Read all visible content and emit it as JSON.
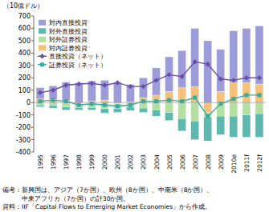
{
  "chart_data": {
    "type": "bar",
    "stacked": true,
    "y_label": "（10億ドル）",
    "categories": [
      "1995",
      "1996",
      "1997",
      "1998",
      "1999",
      "2000",
      "2001",
      "2002",
      "2003",
      "2004",
      "2005",
      "2006",
      "2007",
      "2008",
      "2009",
      "2010e",
      "2011f",
      "2012f"
    ],
    "ylim": [
      -400,
      700
    ],
    "yticks": [
      -400,
      -300,
      -200,
      -100,
      0,
      100,
      200,
      300,
      400,
      500,
      600,
      700
    ],
    "grid": false,
    "legend": "top-left",
    "series": [
      {
        "name": "対内直接投資",
        "type": "bar",
        "color": "#9c9cd8",
        "values": [
          90,
          110,
          150,
          160,
          165,
          160,
          165,
          140,
          160,
          220,
          280,
          300,
          470,
          500,
          340,
          420,
          440,
          470
        ]
      },
      {
        "name": "対外直接投資",
        "type": "bar",
        "color": "#5fb8b0",
        "values": [
          -15,
          -20,
          -25,
          -20,
          -20,
          -35,
          -30,
          -30,
          -35,
          -50,
          -65,
          -100,
          -150,
          -190,
          -150,
          -170,
          -180,
          -190
        ]
      },
      {
        "name": "対外証券投資",
        "type": "bar",
        "color": "#b5dfa0",
        "values": [
          -20,
          -25,
          -35,
          -30,
          -40,
          -50,
          -40,
          -35,
          -45,
          -60,
          -80,
          -130,
          -150,
          -40,
          -110,
          -110,
          -100,
          -90
        ]
      },
      {
        "name": "対内証券投資",
        "type": "bar",
        "color": "#f5c07a",
        "values": [
          30,
          25,
          15,
          -10,
          10,
          20,
          -10,
          5,
          40,
          60,
          90,
          120,
          130,
          -80,
          90,
          160,
          160,
          150
        ]
      },
      {
        "name": "直接投資（ネット）",
        "type": "line",
        "color": "#6a4fa8",
        "marker": "diamond",
        "values": [
          80,
          100,
          140,
          150,
          155,
          140,
          160,
          130,
          130,
          180,
          225,
          210,
          330,
          310,
          190,
          180,
          200,
          200
        ]
      },
      {
        "name": "証券投資（ネット）",
        "type": "line",
        "color": "#3aa89c",
        "marker": "square",
        "values": [
          10,
          20,
          10,
          -20,
          -10,
          -20,
          -30,
          -20,
          10,
          10,
          20,
          10,
          40,
          -110,
          -10,
          30,
          60,
          60
        ]
      }
    ],
    "notes": [
      "備考：新興国は、アジア（7か国）、欧州（8か国）、中南米（8か国）、",
      "　　　中東アフリカ（7か国）の計30か国。",
      "資料：IIF「Capital Flows to Emerging Market Economies」から作成。"
    ]
  }
}
